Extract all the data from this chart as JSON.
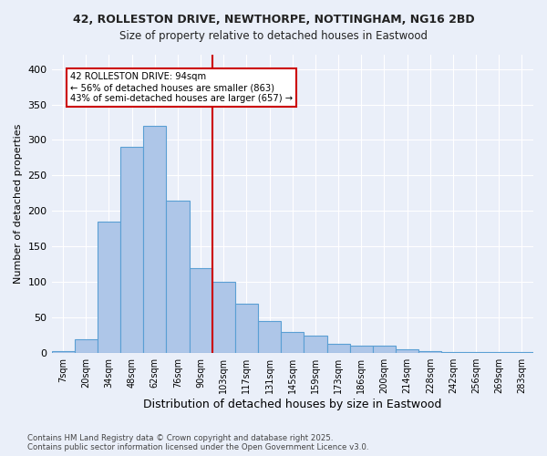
{
  "title_line1": "42, ROLLESTON DRIVE, NEWTHORPE, NOTTINGHAM, NG16 2BD",
  "title_line2": "Size of property relative to detached houses in Eastwood",
  "xlabel": "Distribution of detached houses by size in Eastwood",
  "ylabel": "Number of detached properties",
  "bins": [
    "7sqm",
    "20sqm",
    "34sqm",
    "48sqm",
    "62sqm",
    "76sqm",
    "90sqm",
    "103sqm",
    "117sqm",
    "131sqm",
    "145sqm",
    "159sqm",
    "173sqm",
    "186sqm",
    "200sqm",
    "214sqm",
    "228sqm",
    "242sqm",
    "256sqm",
    "269sqm",
    "283sqm"
  ],
  "values": [
    3,
    20,
    185,
    290,
    320,
    215,
    120,
    100,
    70,
    45,
    30,
    25,
    13,
    10,
    10,
    5,
    3,
    2,
    2,
    2,
    2
  ],
  "bar_color": "#aec6e8",
  "bar_edge_color": "#5a9fd4",
  "vline_color": "#cc0000",
  "annotation_text": "42 ROLLESTON DRIVE: 94sqm\n← 56% of detached houses are smaller (863)\n43% of semi-detached houses are larger (657) →",
  "annotation_box_color": "#cc0000",
  "annotation_fill": "#ffffff",
  "ylim": [
    0,
    420
  ],
  "yticks": [
    0,
    50,
    100,
    150,
    200,
    250,
    300,
    350,
    400
  ],
  "bg_color": "#eaeff9",
  "fig_color": "#eaeff9",
  "footer_line1": "Contains HM Land Registry data © Crown copyright and database right 2025.",
  "footer_line2": "Contains public sector information licensed under the Open Government Licence v3.0.",
  "font_color": "#222222"
}
